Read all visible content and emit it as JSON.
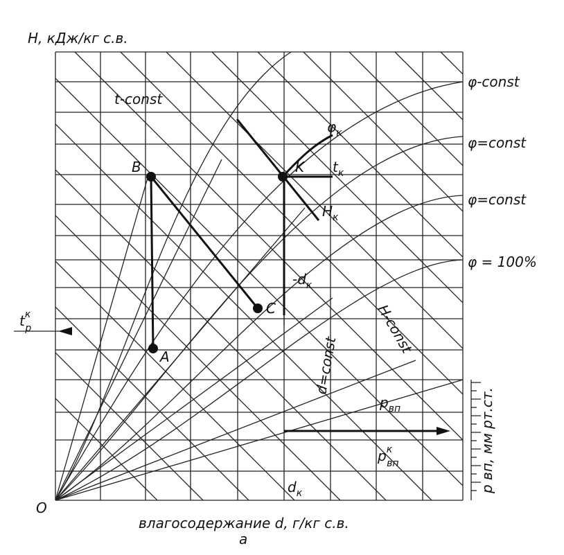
{
  "axis": {
    "y_label": "H, кДж/кг с.в.",
    "x_label": "влагосодержание  d, г/кг с.в.",
    "origin": "O",
    "caption": "а",
    "right_label": "p вп,  мм рт.ст."
  },
  "lines": {
    "t_const": "t-const",
    "phi_1": "φ-const",
    "phi_2": "φ=const",
    "phi_3": "φ=const",
    "phi_100": "φ = 100%",
    "h_const": "H-const",
    "d_const": "d=const",
    "p_vp": {
      "base": "p",
      "sub": "вп"
    }
  },
  "points": {
    "b": "B",
    "k": "K",
    "c": "C",
    "a": "A"
  },
  "labels": {
    "t_k": {
      "base": "t",
      "sub": "к"
    },
    "phi_k": {
      "base": "φ",
      "sub": "к"
    },
    "h_k": {
      "base": "H",
      "sub": "к"
    },
    "minus_d_k": {
      "base": "-d",
      "sub": "к"
    },
    "d_k": {
      "base": "d",
      "sub": "к"
    },
    "t_p_k": {
      "base": "t",
      "sub": "p",
      "sup": "к"
    },
    "p_vp_k": {
      "base": "p",
      "sub": "вп",
      "sup": "к"
    }
  }
}
